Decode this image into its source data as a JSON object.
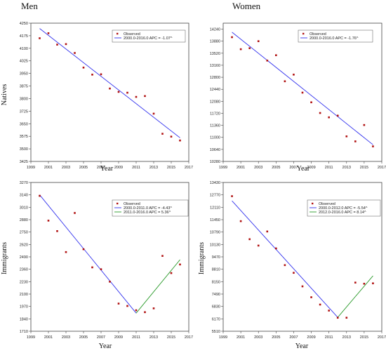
{
  "headers": {
    "men": "Men",
    "women": "Women"
  },
  "chart_data": [
    {
      "type": "scatter",
      "panel": "men-natives",
      "xlabel": "Year",
      "ylabel": "Natives",
      "xlim": [
        1999,
        2017
      ],
      "xticks": [
        1999,
        2001,
        2003,
        2005,
        2007,
        2009,
        2011,
        2013,
        2015,
        2017
      ],
      "ylim": [
        3425,
        4250
      ],
      "yticks": [
        3425,
        3500,
        3575,
        3650,
        3725,
        3800,
        3875,
        3950,
        4025,
        4100,
        4175,
        4250
      ],
      "legend": [
        {
          "kind": "point",
          "label": "Observed",
          "color": "#b01010"
        },
        {
          "kind": "line",
          "label": "2000.0-2016.0 APC = -1.07^",
          "color": "#3333ee"
        }
      ],
      "observed": {
        "x": [
          2000,
          2001,
          2002,
          2003,
          2004,
          2005,
          2006,
          2007,
          2008,
          2009,
          2010,
          2011,
          2012,
          2013,
          2014,
          2015,
          2016
        ],
        "y": [
          4160,
          4190,
          4122,
          4125,
          4072,
          3985,
          3943,
          3945,
          3860,
          3840,
          3835,
          3810,
          3815,
          3710,
          3590,
          3573,
          3550
        ]
      },
      "segments": [
        {
          "x": [
            2000,
            2016
          ],
          "y": [
            4218,
            3566
          ],
          "color": "#3333ee"
        }
      ]
    },
    {
      "type": "scatter",
      "panel": "women-natives",
      "xlabel": "Year",
      "ylabel": "",
      "xlim": [
        1999,
        2017
      ],
      "xticks": [
        1999,
        2001,
        2003,
        2005,
        2007,
        2009,
        2011,
        2013,
        2015,
        2017
      ],
      "ylim": [
        10280,
        14420
      ],
      "yticks": [
        10280,
        10640,
        11000,
        11360,
        11720,
        12080,
        12440,
        12800,
        13160,
        13520,
        13880,
        14240
      ],
      "legend": [
        {
          "kind": "point",
          "label": "Observed",
          "color": "#b01010"
        },
        {
          "kind": "line",
          "label": "2000.0-2016.0 APC = -1.76^",
          "color": "#3333ee"
        }
      ],
      "observed": {
        "x": [
          2000,
          2001,
          2002,
          2003,
          2004,
          2005,
          2006,
          2007,
          2008,
          2009,
          2010,
          2011,
          2012,
          2013,
          2014,
          2015,
          2016
        ],
        "y": [
          14000,
          13640,
          13670,
          13880,
          13300,
          13460,
          12680,
          12880,
          12340,
          12050,
          11730,
          11600,
          11650,
          11030,
          10880,
          11370,
          10730
        ]
      },
      "segments": [
        {
          "x": [
            2000,
            2016
          ],
          "y": [
            14150,
            10780
          ],
          "color": "#3333ee"
        }
      ]
    },
    {
      "type": "scatter",
      "panel": "men-immigrants",
      "xlabel": "Year",
      "ylabel": "Immigrants",
      "xlim": [
        1999,
        2017
      ],
      "xticks": [
        1999,
        2001,
        2003,
        2005,
        2007,
        2009,
        2011,
        2013,
        2015,
        2017
      ],
      "ylim": [
        1710,
        3270
      ],
      "yticks": [
        1710,
        1840,
        1970,
        2100,
        2230,
        2360,
        2490,
        2620,
        2750,
        2880,
        3010,
        3140,
        3270
      ],
      "legend": [
        {
          "kind": "point",
          "label": "Observed",
          "color": "#b01010"
        },
        {
          "kind": "line",
          "label": "2000.0-2011.0 APC = -4.43^",
          "color": "#3333ee"
        },
        {
          "kind": "line",
          "label": "2011.0-2016.0 APC = 5.36^",
          "color": "#2a9a2a"
        }
      ],
      "observed": {
        "x": [
          2000,
          2001,
          2002,
          2003,
          2004,
          2005,
          2006,
          2007,
          2008,
          2009,
          2010,
          2011,
          2012,
          2013,
          2014,
          2015,
          2016
        ],
        "y": [
          3130,
          2870,
          2760,
          2540,
          2950,
          2570,
          2380,
          2360,
          2230,
          2000,
          1975,
          1930,
          1910,
          1950,
          2500,
          2320,
          2410
        ]
      },
      "segments": [
        {
          "x": [
            2000,
            2011
          ],
          "y": [
            3140,
            1900
          ],
          "color": "#3333ee"
        },
        {
          "x": [
            2011,
            2016
          ],
          "y": [
            1900,
            2460
          ],
          "color": "#2a9a2a"
        }
      ]
    },
    {
      "type": "scatter",
      "panel": "women-immigrants",
      "xlabel": "Year",
      "ylabel": "Immigrants",
      "xlim": [
        1999,
        2017
      ],
      "xticks": [
        1999,
        2001,
        2003,
        2005,
        2007,
        2009,
        2011,
        2013,
        2015,
        2017
      ],
      "ylim": [
        5510,
        13430
      ],
      "yticks": [
        5510,
        6170,
        6830,
        7490,
        8150,
        8810,
        9470,
        10130,
        10790,
        11450,
        12110,
        12770,
        13430
      ],
      "legend": [
        {
          "kind": "point",
          "label": "Observed",
          "color": "#b01010"
        },
        {
          "kind": "line",
          "label": "2000.0-2012.0 APC = -5.54^",
          "color": "#3333ee"
        },
        {
          "kind": "line",
          "label": "2012.0-2016.0 APC = 8.14^",
          "color": "#2a9a2a"
        }
      ],
      "observed": {
        "x": [
          2000,
          2001,
          2002,
          2003,
          2004,
          2005,
          2006,
          2007,
          2008,
          2009,
          2010,
          2011,
          2012,
          2013,
          2014,
          2015,
          2016
        ],
        "y": [
          12700,
          11370,
          10410,
          10070,
          10820,
          9920,
          9030,
          8620,
          7900,
          7320,
          6930,
          6610,
          6230,
          6230,
          8100,
          8040,
          8060
        ]
      },
      "segments": [
        {
          "x": [
            2000,
            2012
          ],
          "y": [
            12450,
            6250
          ],
          "color": "#3333ee"
        },
        {
          "x": [
            2012,
            2016
          ],
          "y": [
            6250,
            8460
          ],
          "color": "#2a9a2a"
        }
      ]
    }
  ]
}
